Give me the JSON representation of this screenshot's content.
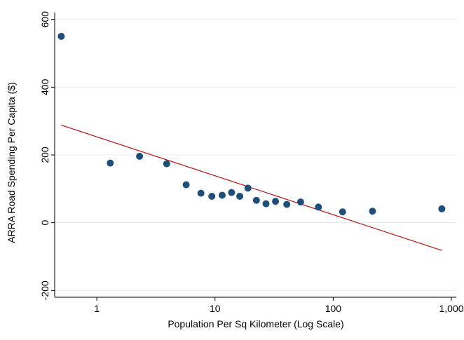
{
  "chart_data": {
    "type": "scatter",
    "xlabel": "Population Per Sq Kilometer (Log Scale)",
    "ylabel": "ARRA Road Spending Per Capita ($)",
    "x_scale": "log",
    "xlim": [
      0.44,
      1100
    ],
    "ylim": [
      -220,
      620
    ],
    "x_ticks": [
      {
        "value": 1,
        "label": "1"
      },
      {
        "value": 10,
        "label": "10"
      },
      {
        "value": 100,
        "label": "100"
      },
      {
        "value": 1000,
        "label": "1,000"
      }
    ],
    "y_ticks": [
      {
        "value": -200,
        "label": "-200"
      },
      {
        "value": 0,
        "label": "0"
      },
      {
        "value": 200,
        "label": "200"
      },
      {
        "value": 400,
        "label": "400"
      },
      {
        "value": 600,
        "label": "600"
      }
    ],
    "grid": "horizontal",
    "series": [
      {
        "kind": "points",
        "color": "#1f4e79",
        "points": [
          {
            "x": 0.5,
            "y": 550
          },
          {
            "x": 1.3,
            "y": 176
          },
          {
            "x": 2.3,
            "y": 196
          },
          {
            "x": 3.9,
            "y": 174
          },
          {
            "x": 5.7,
            "y": 112
          },
          {
            "x": 7.6,
            "y": 87
          },
          {
            "x": 9.4,
            "y": 78
          },
          {
            "x": 11.5,
            "y": 81
          },
          {
            "x": 13.8,
            "y": 89
          },
          {
            "x": 16.2,
            "y": 78
          },
          {
            "x": 19.0,
            "y": 102
          },
          {
            "x": 22.4,
            "y": 66
          },
          {
            "x": 27.0,
            "y": 56
          },
          {
            "x": 32.5,
            "y": 63
          },
          {
            "x": 40.5,
            "y": 54
          },
          {
            "x": 53.0,
            "y": 61
          },
          {
            "x": 75.0,
            "y": 46
          },
          {
            "x": 120,
            "y": 32
          },
          {
            "x": 215,
            "y": 34
          },
          {
            "x": 830,
            "y": 41
          }
        ]
      },
      {
        "kind": "fit_line",
        "color": "#b22222",
        "points": [
          {
            "x": 0.5,
            "y": 288
          },
          {
            "x": 830,
            "y": -82
          }
        ]
      }
    ]
  }
}
